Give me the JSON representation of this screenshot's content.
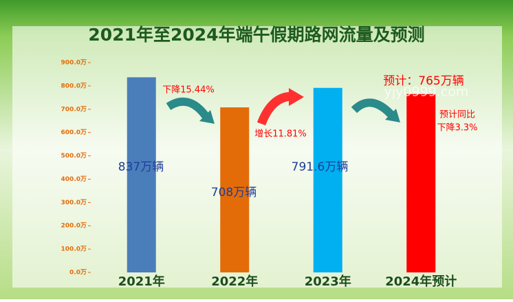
{
  "chart_data": {
    "type": "bar",
    "title": "2021年至2024年端午假期路网流量及预测",
    "categories": [
      "2021年",
      "2022年",
      "2023年",
      "2024年预计"
    ],
    "values": [
      837,
      708,
      791.6,
      765
    ],
    "value_labels": [
      "837万辆",
      "708万辆",
      "791.6万辆",
      "预计：765万辆"
    ],
    "colors": [
      "#4a7ebb",
      "#e36c09",
      "#00b0f0",
      "#ff0000"
    ],
    "value_label_colors": [
      "#1f3d99",
      "#1f3d99",
      "#1f3d99",
      "#ff0000"
    ],
    "annotations": [
      "下降15.44%",
      "增长11.81%",
      "预计同比",
      "下降3.3%"
    ],
    "watermark": "yjy0999.com",
    "ylim": [
      0,
      900
    ],
    "yticks": [
      {
        "value": 0,
        "label": "0.0万"
      },
      {
        "value": 100,
        "label": "100.0万"
      },
      {
        "value": 200,
        "label": "200.0万"
      },
      {
        "value": 300,
        "label": "300.0万"
      },
      {
        "value": 400,
        "label": "400.0万"
      },
      {
        "value": 500,
        "label": "500.0万"
      },
      {
        "value": 600,
        "label": "600.0万"
      },
      {
        "value": 700,
        "label": "700.0万"
      },
      {
        "value": 800,
        "label": "800.0万"
      },
      {
        "value": 900,
        "label": "900.0万"
      }
    ],
    "grid": false
  }
}
